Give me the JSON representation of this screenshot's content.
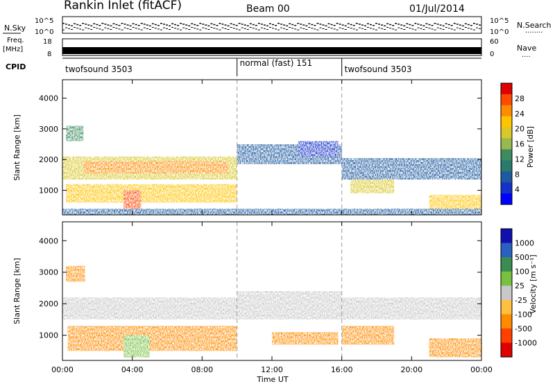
{
  "header": {
    "station": "Rankin Inlet (fitACF)",
    "beam": "Beam 00",
    "date": "01/Jul/2014"
  },
  "noise_panel": {
    "left_label": "N.Sky",
    "right_label": "N.Search",
    "left_ticks": [
      "10^5",
      "10^0"
    ],
    "right_ticks": [
      "10^5",
      "10^0"
    ],
    "legend_dots": "........"
  },
  "freq_panel": {
    "left_label": "Freq.",
    "left_unit": "[MHz]",
    "left_ticks": [
      "18",
      "8"
    ],
    "right_label": "Nave",
    "right_ticks": [
      "60",
      "0"
    ],
    "legend_dots": "...."
  },
  "cpid": {
    "label": "CPID",
    "segments": [
      {
        "name": "twofsound 3503",
        "start": 0,
        "end": 10
      },
      {
        "name": "normal (fast) 151",
        "start": 10,
        "end": 16
      },
      {
        "name": "twofsound 3503",
        "start": 16,
        "end": 24
      }
    ]
  },
  "x_axis": {
    "label": "Time UT",
    "ticks": [
      "00:00",
      "04:00",
      "08:00",
      "12:00",
      "16:00",
      "20:00",
      "00:00"
    ],
    "range_hours": [
      0,
      24
    ]
  },
  "power_colorbar": {
    "label": "Power [dB]",
    "ticks": [
      "28",
      "24",
      "20",
      "16",
      "12",
      "8",
      "4"
    ],
    "colors": [
      "#e00000",
      "#ff4a00",
      "#ff8c00",
      "#ffc400",
      "#d8c828",
      "#98b850",
      "#3c8c60",
      "#2a7a6a",
      "#1e5aa0",
      "#1432c8",
      "#0000ff"
    ]
  },
  "velocity_colorbar": {
    "label": "Velocity [m s⁻¹]",
    "ticks": [
      "1000",
      "500",
      "100",
      "25",
      "-25",
      "-100",
      "-500",
      "-1000"
    ],
    "colors": [
      "#1010b0",
      "#2a60c0",
      "#3a8c50",
      "#78c040",
      "#c8c8c8",
      "#ffc040",
      "#ff8c00",
      "#ff4000",
      "#e00000"
    ]
  },
  "chart_data": {
    "type": "heatmap",
    "panels": [
      {
        "name": "Power",
        "ylabel": "Slant Range [km]",
        "yticks": [
          1000,
          2000,
          3000,
          4000
        ],
        "ylim": [
          200,
          4600
        ],
        "xlim_hours": [
          0,
          24
        ],
        "blobs": [
          {
            "t0": 0.0,
            "t1": 10.0,
            "r0": 1350,
            "r1": 2100,
            "v": 18
          },
          {
            "t0": 1.2,
            "t1": 9.5,
            "r0": 1550,
            "r1": 1950,
            "v": 24
          },
          {
            "t0": 10.0,
            "t1": 16.0,
            "r0": 1850,
            "r1": 2500,
            "v": 6
          },
          {
            "t0": 13.5,
            "t1": 15.8,
            "r0": 2100,
            "r1": 2600,
            "v": 4
          },
          {
            "t0": 16.0,
            "t1": 24.0,
            "r0": 1350,
            "r1": 2050,
            "v": 6
          },
          {
            "t0": 0.2,
            "t1": 10.0,
            "r0": 600,
            "r1": 1200,
            "v": 20
          },
          {
            "t0": 3.5,
            "t1": 4.5,
            "r0": 250,
            "r1": 1000,
            "v": 26
          },
          {
            "t0": 16.5,
            "t1": 19.0,
            "r0": 900,
            "r1": 1350,
            "v": 18
          },
          {
            "t0": 21.0,
            "t1": 24.0,
            "r0": 300,
            "r1": 850,
            "v": 22
          },
          {
            "t0": 0.2,
            "t1": 1.2,
            "r0": 2600,
            "r1": 3100,
            "v": 12
          },
          {
            "t0": 0.0,
            "t1": 24.0,
            "r0": 200,
            "r1": 400,
            "v": 6
          }
        ]
      },
      {
        "name": "Velocity",
        "ylabel": "Slant Range [km]",
        "yticks": [
          1000,
          2000,
          3000,
          4000
        ],
        "ylim": [
          200,
          4600
        ],
        "xlim_hours": [
          0,
          24
        ],
        "blobs": [
          {
            "t0": 0.0,
            "t1": 24.0,
            "r0": 1500,
            "r1": 2200,
            "v": 0
          },
          {
            "t0": 10.0,
            "t1": 16.0,
            "r0": 1750,
            "r1": 2400,
            "v": 0
          },
          {
            "t0": 0.3,
            "t1": 10.0,
            "r0": 500,
            "r1": 1300,
            "v": -150
          },
          {
            "t0": 3.5,
            "t1": 5.0,
            "r0": 300,
            "r1": 1000,
            "v": 60
          },
          {
            "t0": 12.0,
            "t1": 15.8,
            "r0": 700,
            "r1": 1100,
            "v": -300
          },
          {
            "t0": 16.0,
            "t1": 19.0,
            "r0": 700,
            "r1": 1300,
            "v": -400
          },
          {
            "t0": 21.0,
            "t1": 24.0,
            "r0": 300,
            "r1": 900,
            "v": -400
          },
          {
            "t0": 0.2,
            "t1": 1.3,
            "r0": 2700,
            "r1": 3200,
            "v": -200
          }
        ]
      }
    ],
    "noise_series": [
      {
        "name": "N.Sky",
        "level": 0.55
      },
      {
        "name": "N.Search",
        "level": 0.3
      }
    ],
    "freq_series": {
      "name": "Freq.",
      "level_mhz": 10.5
    }
  }
}
